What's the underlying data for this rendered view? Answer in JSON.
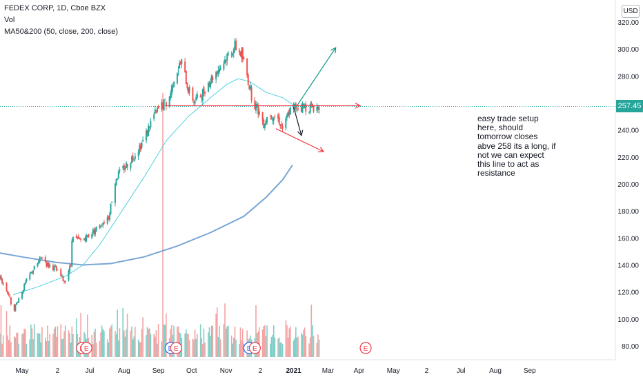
{
  "legend": {
    "title": "FEDEX CORP, 1D, Cboe BZX",
    "vol": "Vol",
    "ma": "MA50&200 (50, close, 200, close)"
  },
  "currency_button": "USD",
  "last_price_label": "257.45",
  "note_text": "easy trade setup\nhere, should\ntomorrow  closes\nabve 258 its a long, if\nnot we can expect\nthis line to act as\nresistance",
  "colors": {
    "up": "#26a69a",
    "down": "#ef5350",
    "ma50": "#4dd0e1",
    "ma200": "#78a6d4",
    "volume_up": "#80cfc7",
    "volume_down": "#f4a3a2",
    "annotation_red": "#f23645",
    "annotation_green": "#089981"
  },
  "chart_data": {
    "type": "candlestick",
    "title": "",
    "xlabel": "",
    "ylabel": "",
    "ylim": [
      75,
      325
    ],
    "y_ticks": [
      80,
      100,
      120,
      140,
      160,
      180,
      200,
      220,
      240,
      260,
      280,
      300,
      320
    ],
    "x_ticks": [
      "May",
      "2",
      "Jul",
      "Aug",
      "Sep",
      "Oct",
      "Nov",
      "2",
      "2021",
      "Mar",
      "Apr",
      "May",
      "2",
      "Jul",
      "Aug",
      "Sep"
    ],
    "x_tick_days": [
      0,
      32,
      61,
      92,
      123,
      153,
      184,
      215,
      245,
      276,
      304,
      335,
      365,
      396,
      427,
      458
    ],
    "first_day": -28,
    "last_candle_day": 268,
    "price_path": [
      [
        -28,
        127
      ],
      [
        -20,
        131
      ],
      [
        -12,
        118
      ],
      [
        -8,
        106
      ],
      [
        -2,
        117
      ],
      [
        5,
        130
      ],
      [
        12,
        139
      ],
      [
        18,
        146
      ],
      [
        22,
        141
      ],
      [
        30,
        137
      ],
      [
        38,
        128
      ],
      [
        44,
        140
      ],
      [
        45,
        160
      ],
      [
        52,
        158
      ],
      [
        60,
        162
      ],
      [
        70,
        169
      ],
      [
        78,
        176
      ],
      [
        85,
        205
      ],
      [
        92,
        212
      ],
      [
        100,
        220
      ],
      [
        110,
        233
      ],
      [
        118,
        250
      ],
      [
        126,
        258
      ],
      [
        132,
        261
      ],
      [
        138,
        282
      ],
      [
        144,
        290
      ],
      [
        150,
        270
      ],
      [
        155,
        262
      ],
      [
        160,
        264
      ],
      [
        168,
        275
      ],
      [
        174,
        282
      ],
      [
        180,
        288
      ],
      [
        186,
        296
      ],
      [
        192,
        302
      ],
      [
        198,
        296
      ],
      [
        202,
        284
      ],
      [
        208,
        262
      ],
      [
        214,
        253
      ],
      [
        218,
        245
      ],
      [
        223,
        253
      ],
      [
        228,
        250
      ],
      [
        232,
        247
      ],
      [
        236,
        240
      ],
      [
        240,
        252
      ],
      [
        244,
        257
      ]
    ],
    "volume_spikes": [
      [
        61,
        95
      ],
      [
        127,
        135
      ],
      [
        208,
        128
      ]
    ],
    "ma50_path": [
      [
        -8,
        118
      ],
      [
        15,
        124
      ],
      [
        40,
        132
      ],
      [
        55,
        140
      ],
      [
        70,
        155
      ],
      [
        90,
        180
      ],
      [
        110,
        205
      ],
      [
        130,
        232
      ],
      [
        150,
        250
      ],
      [
        170,
        264
      ],
      [
        185,
        274
      ],
      [
        195,
        278
      ],
      [
        205,
        276
      ],
      [
        220,
        268
      ],
      [
        235,
        264
      ],
      [
        244,
        259
      ]
    ],
    "ma200_path": [
      [
        -28,
        150
      ],
      [
        0,
        146
      ],
      [
        30,
        142
      ],
      [
        55,
        140
      ],
      [
        80,
        141
      ],
      [
        110,
        146
      ],
      [
        140,
        154
      ],
      [
        170,
        164
      ],
      [
        200,
        176
      ],
      [
        220,
        190
      ],
      [
        235,
        203
      ],
      [
        244,
        214
      ]
    ],
    "earnings_markers": [
      {
        "day": 54,
        "label": "E"
      },
      {
        "day": 58,
        "label": "E"
      },
      {
        "day": 134,
        "label": "D"
      },
      {
        "day": 139,
        "label": "E"
      },
      {
        "day": 205,
        "label": "D"
      },
      {
        "day": 210,
        "label": "E"
      },
      {
        "day": 310,
        "label": "E"
      }
    ],
    "annotations": {
      "resistance_line": {
        "y": 258,
        "from_day": 129,
        "to_day": 305
      },
      "support_line": {
        "from": [
          229,
          241
        ],
        "to": [
          272,
          224
        ]
      },
      "up_arrow": {
        "from": [
          248,
          258
        ],
        "to": [
          283,
          301
        ]
      },
      "down_arrow": {
        "from": [
          245,
          257
        ],
        "to": [
          252,
          236
        ]
      }
    },
    "last_price": 257.45
  }
}
